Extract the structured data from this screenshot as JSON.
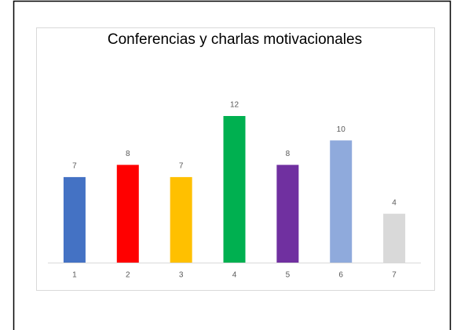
{
  "chart_data": {
    "type": "bar",
    "title": "Conferencias y charlas motivacionales",
    "categories": [
      "1",
      "2",
      "3",
      "4",
      "5",
      "6",
      "7"
    ],
    "values": [
      7,
      8,
      7,
      12,
      8,
      10,
      4
    ],
    "colors": [
      "#4472c4",
      "#ff0000",
      "#ffc000",
      "#00b050",
      "#7030a0",
      "#8faadc",
      "#d9d9d9"
    ],
    "data_labels": true
  }
}
